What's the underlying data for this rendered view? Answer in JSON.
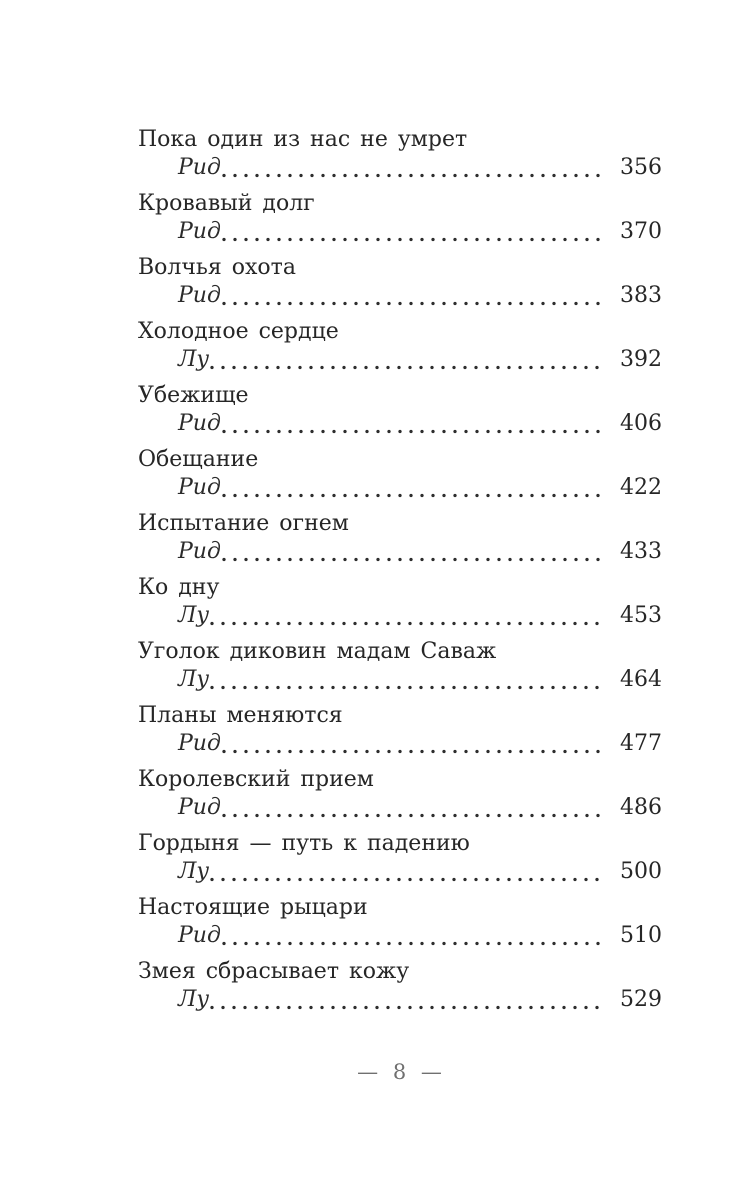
{
  "page": {
    "folio": "— 8 —"
  },
  "toc": {
    "entries": [
      {
        "title": "Пока один из нас не умрет",
        "subtitle": "Рид",
        "page": "356"
      },
      {
        "title": "Кровавый долг",
        "subtitle": "Рид",
        "page": "370"
      },
      {
        "title": "Волчья охота",
        "subtitle": "Рид",
        "page": "383"
      },
      {
        "title": "Холодное сердце",
        "subtitle": "Лу",
        "page": "392"
      },
      {
        "title": "Убежище",
        "subtitle": "Рид",
        "page": "406"
      },
      {
        "title": "Обещание",
        "subtitle": "Рид",
        "page": "422"
      },
      {
        "title": "Испытание огнем",
        "subtitle": "Рид",
        "page": "433"
      },
      {
        "title": "Ко дну",
        "subtitle": "Лу",
        "page": "453"
      },
      {
        "title": "Уголок диковин мадам Саваж",
        "subtitle": "Лу",
        "page": "464"
      },
      {
        "title": "Планы меняются",
        "subtitle": "Рид",
        "page": "477"
      },
      {
        "title": "Королевский прием",
        "subtitle": "Рид",
        "page": "486"
      },
      {
        "title": "Гордыня — путь к падению",
        "subtitle": "Лу",
        "page": "500"
      },
      {
        "title": "Настоящие рыцари",
        "subtitle": "Рид",
        "page": "510"
      },
      {
        "title": "Змея сбрасывает кожу",
        "subtitle": "Лу",
        "page": "529"
      }
    ]
  }
}
